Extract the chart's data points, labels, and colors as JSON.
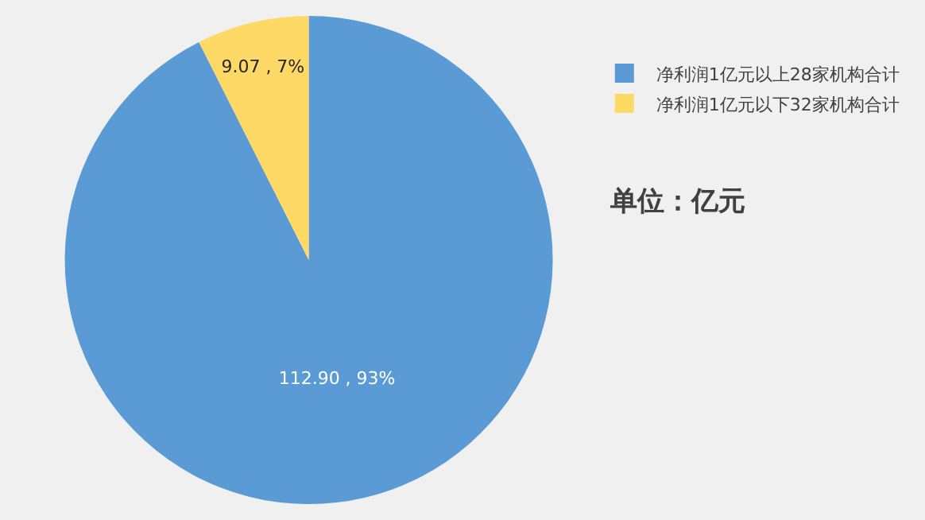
{
  "chart_data": {
    "type": "pie",
    "categories": [
      "净利润1亿元以上28家机构合计",
      "净利润1亿元以下32家机构合计"
    ],
    "values": [
      112.9,
      9.07
    ],
    "colors": [
      "#5b9bd5",
      "#ffd966"
    ],
    "value_labels": [
      "112.90 , 93%",
      "9.07 , 7%"
    ],
    "annotations": [
      "单位：亿元"
    ],
    "legend": "top right"
  }
}
